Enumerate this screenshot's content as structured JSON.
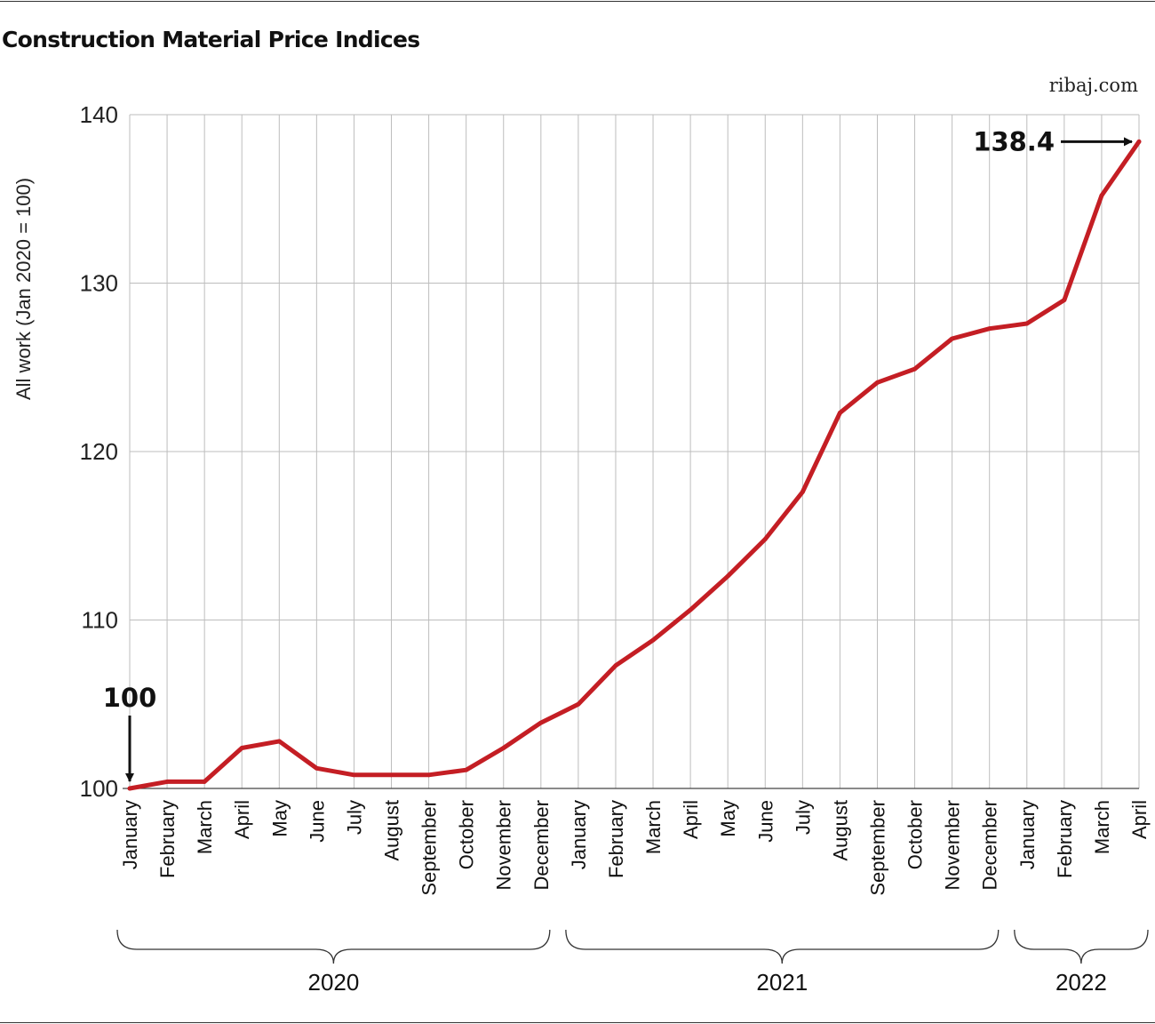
{
  "chart_data": {
    "type": "line",
    "title": "Construction Material Price Indices",
    "source": "ribaj.com",
    "ylabel": "All work (Jan 2020 = 100)",
    "ylim": [
      100,
      140
    ],
    "yticks": [
      100,
      110,
      120,
      130,
      140
    ],
    "grid": true,
    "categories": [
      "January",
      "February",
      "March",
      "April",
      "May",
      "June",
      "July",
      "August",
      "September",
      "October",
      "November",
      "December",
      "January",
      "February",
      "March",
      "April",
      "May",
      "June",
      "July",
      "August",
      "September",
      "October",
      "November",
      "December",
      "January",
      "February",
      "March",
      "April"
    ],
    "year_groups": [
      {
        "label": "2020",
        "from": 0,
        "to": 11
      },
      {
        "label": "2021",
        "from": 12,
        "to": 23
      },
      {
        "label": "2022",
        "from": 24,
        "to": 27
      }
    ],
    "series": [
      {
        "color": "#c41e24",
        "values": [
          100,
          100.4,
          100.4,
          102.4,
          102.8,
          101.2,
          100.8,
          100.8,
          100.8,
          101.1,
          102.4,
          103.9,
          105.0,
          107.3,
          108.8,
          110.6,
          112.6,
          114.8,
          117.6,
          122.3,
          124.1,
          124.9,
          126.7,
          127.3,
          127.6,
          129.0,
          135.2,
          138.4
        ]
      }
    ],
    "annotations": [
      {
        "label": "100",
        "index": 0,
        "value": 100
      },
      {
        "label": "138.4",
        "index": 27,
        "value": 138.4
      }
    ]
  }
}
